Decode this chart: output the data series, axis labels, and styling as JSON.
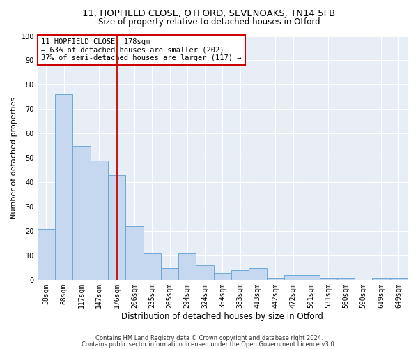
{
  "title1": "11, HOPFIELD CLOSE, OTFORD, SEVENOAKS, TN14 5FB",
  "title2": "Size of property relative to detached houses in Otford",
  "xlabel": "Distribution of detached houses by size in Otford",
  "ylabel": "Number of detached properties",
  "categories": [
    "58sqm",
    "88sqm",
    "117sqm",
    "147sqm",
    "176sqm",
    "206sqm",
    "235sqm",
    "265sqm",
    "294sqm",
    "324sqm",
    "354sqm",
    "383sqm",
    "413sqm",
    "442sqm",
    "472sqm",
    "501sqm",
    "531sqm",
    "560sqm",
    "590sqm",
    "619sqm",
    "649sqm"
  ],
  "values": [
    21,
    76,
    55,
    49,
    43,
    22,
    11,
    5,
    11,
    6,
    3,
    4,
    5,
    1,
    2,
    2,
    1,
    1,
    0,
    1,
    1
  ],
  "bar_color": "#c5d8f0",
  "bar_edge_color": "#6ea8d8",
  "vline_x": 4,
  "vline_color": "#cc0000",
  "annotation_text": "11 HOPFIELD CLOSE: 178sqm\n← 63% of detached houses are smaller (202)\n37% of semi-detached houses are larger (117) →",
  "annotation_box_color": "#cc0000",
  "ylim": [
    0,
    100
  ],
  "yticks": [
    0,
    10,
    20,
    30,
    40,
    50,
    60,
    70,
    80,
    90,
    100
  ],
  "background_color": "#e8eef5",
  "footer1": "Contains HM Land Registry data © Crown copyright and database right 2024.",
  "footer2": "Contains public sector information licensed under the Open Government Licence v3.0.",
  "title1_fontsize": 9.5,
  "title2_fontsize": 8.5,
  "xlabel_fontsize": 8.5,
  "ylabel_fontsize": 8,
  "tick_fontsize": 7,
  "annotation_fontsize": 7.5,
  "footer_fontsize": 6
}
